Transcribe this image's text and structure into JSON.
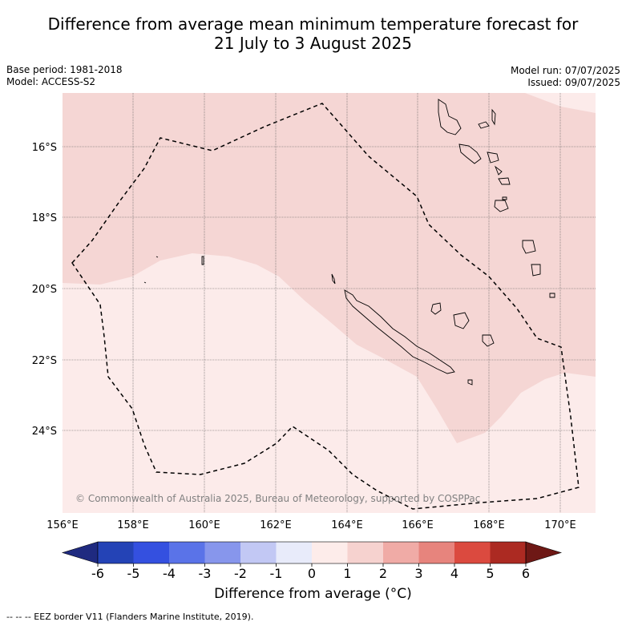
{
  "title": {
    "line1": "Difference from average mean minimum temperature forecast for",
    "line2": "21 July to 3 August 2025"
  },
  "meta": {
    "base_period": "Base period: 1981-2018",
    "model": "Model: ACCESS-S2",
    "model_run": "Model run: 07/07/2025",
    "issued": "Issued: 09/07/2025"
  },
  "map": {
    "lat_labels": [
      "16°S",
      "18°S",
      "20°S",
      "22°S",
      "24°S"
    ],
    "lon_labels": [
      "156°E",
      "158°E",
      "160°E",
      "162°E",
      "164°E",
      "166°E",
      "168°E",
      "170°E"
    ],
    "copyright": "© Commonwealth of Australia 2025, Bureau of Meteorology, supported by COSPPac",
    "fill_colors": {
      "diff_0_1": "#fcebea",
      "diff_1_2": "#f5d6d4",
      "eez_border": "#000000",
      "coastline": "#000000"
    }
  },
  "colorbar": {
    "title": "Difference from average (°C)",
    "tick_labels": [
      "-6",
      "-5",
      "-4",
      "-3",
      "-2",
      "-1",
      "0",
      "1",
      "2",
      "3",
      "4",
      "5",
      "6"
    ],
    "colors": [
      "#1f2a80",
      "#2443b6",
      "#3450e0",
      "#5a73e8",
      "#8796ec",
      "#c2c8f4",
      "#e8ebfa",
      "#fdecea",
      "#f6d2cf",
      "#f0aba6",
      "#e7847d",
      "#db4a3f",
      "#ac2a22",
      "#6e1815"
    ]
  },
  "footnote": "--  --  -- EEZ border V11 (Flanders Marine Institute, 2019)."
}
